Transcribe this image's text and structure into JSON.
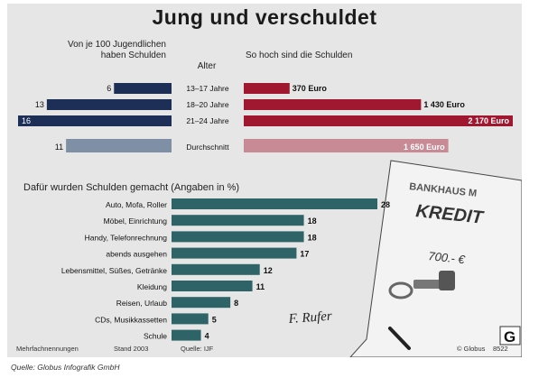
{
  "title": "Jung und verschuldet",
  "header": {
    "left": "Von je 100 Jugendlichen haben Schulden",
    "age": "Alter",
    "right": "So hoch sind die Schulden"
  },
  "section2_title": "Dafür wurden Schulden gemacht (Angaben in %)",
  "footer": {
    "note": "Mehrfachnennungen",
    "stand": "Stand 2003",
    "quelle": "Quelle: IJF",
    "globus": "© Globus",
    "number": "8522"
  },
  "source_caption": "Quelle: Globus Infografik GmbH",
  "document": {
    "bank": "BANKHAUS M",
    "kredit": "KREDIT",
    "amount": "700.- €",
    "signature": "F. Rufer",
    "logo": "G"
  },
  "colors": {
    "navy": "#1e2f57",
    "navy_light": "#7f8fa6",
    "red": "#a01830",
    "red_light": "#c88a94",
    "teal": "#2e6468"
  },
  "chart_data": [
    {
      "type": "bar",
      "orientation": "diverging-horizontal",
      "categories": [
        "13–17 Jahre",
        "18–20 Jahre",
        "21–24 Jahre",
        "Durchschnitt"
      ],
      "series": [
        {
          "name": "Von je 100 Jugendlichen haben Schulden",
          "values": [
            6,
            13,
            16,
            11
          ],
          "labels": [
            "6",
            "13",
            "16",
            "11"
          ]
        },
        {
          "name": "So hoch sind die Schulden",
          "values": [
            370,
            1430,
            2170,
            1650
          ],
          "labels": [
            "370 Euro",
            "1 430 Euro",
            "2 170 Euro",
            "1 650 Euro"
          ]
        }
      ]
    },
    {
      "type": "bar",
      "orientation": "horizontal",
      "title": "Dafür wurden Schulden gemacht (Angaben in %)",
      "categories": [
        "Auto, Mofa, Roller",
        "Möbel, Einrichtung",
        "Handy, Telefonrechnung",
        "abends ausgehen",
        "Lebensmittel, Süßes, Getränke",
        "Kleidung",
        "Reisen, Urlaub",
        "CDs, Musikkassetten",
        "Schule"
      ],
      "values": [
        28,
        18,
        18,
        17,
        12,
        11,
        8,
        5,
        4
      ]
    }
  ]
}
